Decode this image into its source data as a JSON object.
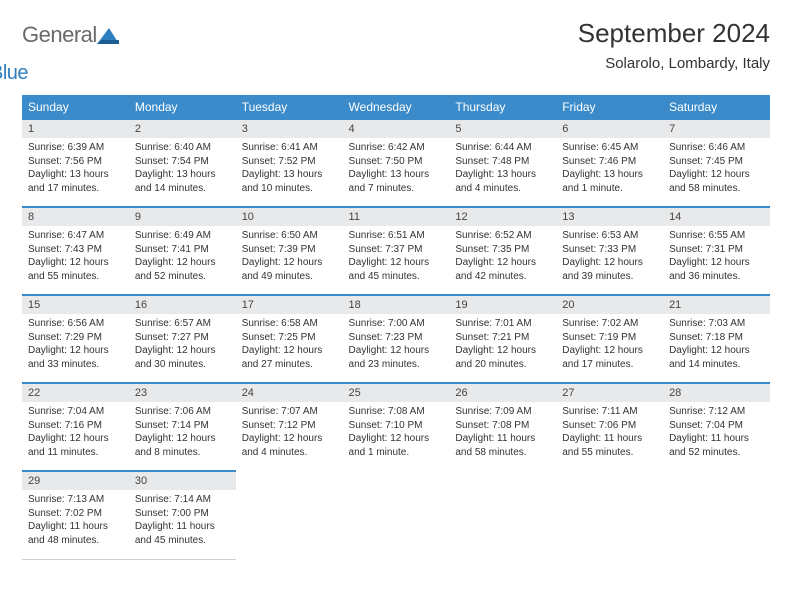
{
  "logo": {
    "word1": "General",
    "word2": "Blue"
  },
  "title": "September 2024",
  "location": "Solarolo, Lombardy, Italy",
  "colors": {
    "header_bg": "#3b8bca",
    "header_text": "#ffffff",
    "daynum_bg": "#e7e9eb",
    "row_border": "#3b8bca",
    "body_text": "#333333",
    "logo_gray": "#6a6a6a",
    "logo_blue": "#2f7fbf"
  },
  "weekdays": [
    "Sunday",
    "Monday",
    "Tuesday",
    "Wednesday",
    "Thursday",
    "Friday",
    "Saturday"
  ],
  "days": [
    {
      "n": 1,
      "sunrise": "6:39 AM",
      "sunset": "7:56 PM",
      "daylight": "13 hours and 17 minutes."
    },
    {
      "n": 2,
      "sunrise": "6:40 AM",
      "sunset": "7:54 PM",
      "daylight": "13 hours and 14 minutes."
    },
    {
      "n": 3,
      "sunrise": "6:41 AM",
      "sunset": "7:52 PM",
      "daylight": "13 hours and 10 minutes."
    },
    {
      "n": 4,
      "sunrise": "6:42 AM",
      "sunset": "7:50 PM",
      "daylight": "13 hours and 7 minutes."
    },
    {
      "n": 5,
      "sunrise": "6:44 AM",
      "sunset": "7:48 PM",
      "daylight": "13 hours and 4 minutes."
    },
    {
      "n": 6,
      "sunrise": "6:45 AM",
      "sunset": "7:46 PM",
      "daylight": "13 hours and 1 minute."
    },
    {
      "n": 7,
      "sunrise": "6:46 AM",
      "sunset": "7:45 PM",
      "daylight": "12 hours and 58 minutes."
    },
    {
      "n": 8,
      "sunrise": "6:47 AM",
      "sunset": "7:43 PM",
      "daylight": "12 hours and 55 minutes."
    },
    {
      "n": 9,
      "sunrise": "6:49 AM",
      "sunset": "7:41 PM",
      "daylight": "12 hours and 52 minutes."
    },
    {
      "n": 10,
      "sunrise": "6:50 AM",
      "sunset": "7:39 PM",
      "daylight": "12 hours and 49 minutes."
    },
    {
      "n": 11,
      "sunrise": "6:51 AM",
      "sunset": "7:37 PM",
      "daylight": "12 hours and 45 minutes."
    },
    {
      "n": 12,
      "sunrise": "6:52 AM",
      "sunset": "7:35 PM",
      "daylight": "12 hours and 42 minutes."
    },
    {
      "n": 13,
      "sunrise": "6:53 AM",
      "sunset": "7:33 PM",
      "daylight": "12 hours and 39 minutes."
    },
    {
      "n": 14,
      "sunrise": "6:55 AM",
      "sunset": "7:31 PM",
      "daylight": "12 hours and 36 minutes."
    },
    {
      "n": 15,
      "sunrise": "6:56 AM",
      "sunset": "7:29 PM",
      "daylight": "12 hours and 33 minutes."
    },
    {
      "n": 16,
      "sunrise": "6:57 AM",
      "sunset": "7:27 PM",
      "daylight": "12 hours and 30 minutes."
    },
    {
      "n": 17,
      "sunrise": "6:58 AM",
      "sunset": "7:25 PM",
      "daylight": "12 hours and 27 minutes."
    },
    {
      "n": 18,
      "sunrise": "7:00 AM",
      "sunset": "7:23 PM",
      "daylight": "12 hours and 23 minutes."
    },
    {
      "n": 19,
      "sunrise": "7:01 AM",
      "sunset": "7:21 PM",
      "daylight": "12 hours and 20 minutes."
    },
    {
      "n": 20,
      "sunrise": "7:02 AM",
      "sunset": "7:19 PM",
      "daylight": "12 hours and 17 minutes."
    },
    {
      "n": 21,
      "sunrise": "7:03 AM",
      "sunset": "7:18 PM",
      "daylight": "12 hours and 14 minutes."
    },
    {
      "n": 22,
      "sunrise": "7:04 AM",
      "sunset": "7:16 PM",
      "daylight": "12 hours and 11 minutes."
    },
    {
      "n": 23,
      "sunrise": "7:06 AM",
      "sunset": "7:14 PM",
      "daylight": "12 hours and 8 minutes."
    },
    {
      "n": 24,
      "sunrise": "7:07 AM",
      "sunset": "7:12 PM",
      "daylight": "12 hours and 4 minutes."
    },
    {
      "n": 25,
      "sunrise": "7:08 AM",
      "sunset": "7:10 PM",
      "daylight": "12 hours and 1 minute."
    },
    {
      "n": 26,
      "sunrise": "7:09 AM",
      "sunset": "7:08 PM",
      "daylight": "11 hours and 58 minutes."
    },
    {
      "n": 27,
      "sunrise": "7:11 AM",
      "sunset": "7:06 PM",
      "daylight": "11 hours and 55 minutes."
    },
    {
      "n": 28,
      "sunrise": "7:12 AM",
      "sunset": "7:04 PM",
      "daylight": "11 hours and 52 minutes."
    },
    {
      "n": 29,
      "sunrise": "7:13 AM",
      "sunset": "7:02 PM",
      "daylight": "11 hours and 48 minutes."
    },
    {
      "n": 30,
      "sunrise": "7:14 AM",
      "sunset": "7:00 PM",
      "daylight": "11 hours and 45 minutes."
    }
  ],
  "labels": {
    "sunrise": "Sunrise:",
    "sunset": "Sunset:",
    "daylight": "Daylight:"
  }
}
